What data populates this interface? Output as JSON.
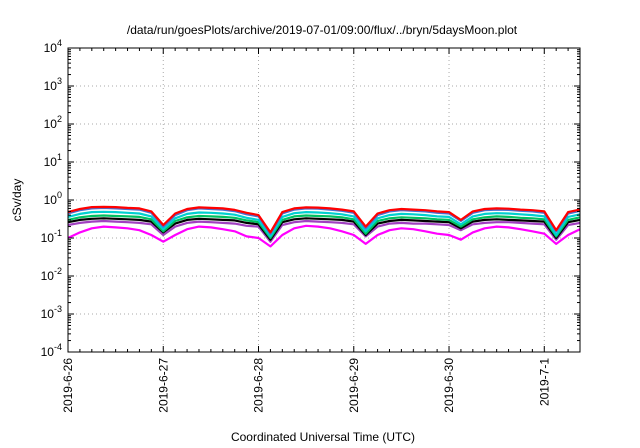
{
  "chart_data": {
    "type": "line",
    "title": "/data/run/goesPlots/archive/2019-07-01/09:00/flux/../bryn/5daysMoon.plot",
    "xlabel": "Coordinated Universal Time (UTC)",
    "ylabel": "cSv/day",
    "yscale": "log",
    "ylim": [
      0.0001,
      10000
    ],
    "ytick_labels": [
      {
        "base": "10",
        "exp": "-4",
        "value": 0.0001
      },
      {
        "base": "10",
        "exp": "-3",
        "value": 0.001
      },
      {
        "base": "10",
        "exp": "-2",
        "value": 0.01
      },
      {
        "base": "10",
        "exp": "-1",
        "value": 0.1
      },
      {
        "base": "10",
        "exp": "0",
        "value": 1
      },
      {
        "base": "10",
        "exp": "1",
        "value": 10
      },
      {
        "base": "10",
        "exp": "2",
        "value": 100
      },
      {
        "base": "10",
        "exp": "3",
        "value": 1000
      },
      {
        "base": "10",
        "exp": "4",
        "value": 10000
      }
    ],
    "xlim": [
      "2019-06-26 00:00",
      "2019-07-01 09:00"
    ],
    "xtick_labels": [
      "2019-6-26",
      "2019-6-27",
      "2019-6-28",
      "2019-6-29",
      "2019-6-30",
      "2019-7-1"
    ],
    "grid": true,
    "x": [
      "2019-06-26 00:00",
      "2019-06-26 03:00",
      "2019-06-26 06:00",
      "2019-06-26 09:00",
      "2019-06-26 12:00",
      "2019-06-26 15:00",
      "2019-06-26 18:00",
      "2019-06-26 21:00",
      "2019-06-27 00:00",
      "2019-06-27 03:00",
      "2019-06-27 06:00",
      "2019-06-27 09:00",
      "2019-06-27 12:00",
      "2019-06-27 15:00",
      "2019-06-27 18:00",
      "2019-06-27 21:00",
      "2019-06-28 00:00",
      "2019-06-28 03:00",
      "2019-06-28 06:00",
      "2019-06-28 09:00",
      "2019-06-28 12:00",
      "2019-06-28 15:00",
      "2019-06-28 18:00",
      "2019-06-28 21:00",
      "2019-06-29 00:00",
      "2019-06-29 03:00",
      "2019-06-29 06:00",
      "2019-06-29 09:00",
      "2019-06-29 12:00",
      "2019-06-29 15:00",
      "2019-06-29 18:00",
      "2019-06-29 21:00",
      "2019-06-30 00:00",
      "2019-06-30 03:00",
      "2019-06-30 06:00",
      "2019-06-30 09:00",
      "2019-06-30 12:00",
      "2019-06-30 15:00",
      "2019-06-30 18:00",
      "2019-06-30 21:00",
      "2019-07-01 00:00",
      "2019-07-01 03:00",
      "2019-07-01 06:00",
      "2019-07-01 09:00"
    ],
    "series": [
      {
        "color": "#ff0000",
        "values": [
          0.48,
          0.58,
          0.65,
          0.66,
          0.65,
          0.62,
          0.6,
          0.5,
          0.22,
          0.44,
          0.58,
          0.64,
          0.62,
          0.6,
          0.55,
          0.46,
          0.4,
          0.14,
          0.48,
          0.6,
          0.64,
          0.63,
          0.6,
          0.56,
          0.5,
          0.2,
          0.44,
          0.54,
          0.58,
          0.56,
          0.54,
          0.5,
          0.48,
          0.3,
          0.5,
          0.58,
          0.6,
          0.59,
          0.56,
          0.54,
          0.5,
          0.16,
          0.48,
          0.56
        ]
      },
      {
        "color": "#4a6fd0",
        "values": [
          0.44,
          0.54,
          0.6,
          0.62,
          0.6,
          0.58,
          0.56,
          0.46,
          0.2,
          0.4,
          0.54,
          0.6,
          0.58,
          0.56,
          0.51,
          0.42,
          0.37,
          0.13,
          0.44,
          0.56,
          0.6,
          0.59,
          0.56,
          0.52,
          0.46,
          0.18,
          0.4,
          0.5,
          0.54,
          0.52,
          0.5,
          0.46,
          0.44,
          0.28,
          0.46,
          0.54,
          0.56,
          0.55,
          0.52,
          0.5,
          0.46,
          0.15,
          0.44,
          0.52
        ]
      },
      {
        "color": "#00d0d0",
        "values": [
          0.36,
          0.43,
          0.48,
          0.49,
          0.48,
          0.46,
          0.44,
          0.37,
          0.17,
          0.33,
          0.43,
          0.47,
          0.46,
          0.44,
          0.41,
          0.34,
          0.3,
          0.11,
          0.36,
          0.45,
          0.48,
          0.47,
          0.45,
          0.42,
          0.37,
          0.15,
          0.33,
          0.4,
          0.43,
          0.42,
          0.4,
          0.37,
          0.36,
          0.23,
          0.37,
          0.43,
          0.45,
          0.44,
          0.42,
          0.4,
          0.37,
          0.12,
          0.36,
          0.42
        ]
      },
      {
        "color": "#00c060",
        "values": [
          0.3,
          0.35,
          0.38,
          0.39,
          0.38,
          0.37,
          0.36,
          0.31,
          0.15,
          0.28,
          0.35,
          0.38,
          0.37,
          0.36,
          0.34,
          0.29,
          0.26,
          0.1,
          0.3,
          0.37,
          0.39,
          0.38,
          0.37,
          0.35,
          0.31,
          0.13,
          0.28,
          0.33,
          0.35,
          0.34,
          0.33,
          0.31,
          0.3,
          0.2,
          0.31,
          0.35,
          0.37,
          0.36,
          0.34,
          0.33,
          0.31,
          0.11,
          0.3,
          0.35
        ]
      },
      {
        "color": "#000000",
        "values": [
          0.26,
          0.3,
          0.32,
          0.33,
          0.32,
          0.31,
          0.3,
          0.27,
          0.14,
          0.24,
          0.3,
          0.32,
          0.31,
          0.3,
          0.29,
          0.25,
          0.23,
          0.09,
          0.26,
          0.31,
          0.33,
          0.32,
          0.31,
          0.3,
          0.27,
          0.12,
          0.24,
          0.28,
          0.3,
          0.29,
          0.28,
          0.27,
          0.26,
          0.18,
          0.27,
          0.3,
          0.31,
          0.3,
          0.29,
          0.28,
          0.27,
          0.1,
          0.26,
          0.3
        ]
      },
      {
        "color": "#a040c0",
        "values": [
          0.22,
          0.25,
          0.27,
          0.28,
          0.27,
          0.26,
          0.25,
          0.23,
          0.12,
          0.2,
          0.25,
          0.27,
          0.26,
          0.25,
          0.24,
          0.21,
          0.2,
          0.08,
          0.22,
          0.26,
          0.28,
          0.27,
          0.26,
          0.25,
          0.23,
          0.11,
          0.2,
          0.24,
          0.25,
          0.24,
          0.24,
          0.23,
          0.22,
          0.16,
          0.23,
          0.25,
          0.26,
          0.26,
          0.25,
          0.24,
          0.23,
          0.09,
          0.22,
          0.25
        ]
      },
      {
        "color": "#ff00ff",
        "values": [
          0.1,
          0.14,
          0.18,
          0.2,
          0.19,
          0.18,
          0.16,
          0.12,
          0.08,
          0.12,
          0.17,
          0.2,
          0.19,
          0.17,
          0.15,
          0.11,
          0.1,
          0.06,
          0.12,
          0.18,
          0.21,
          0.2,
          0.18,
          0.15,
          0.12,
          0.07,
          0.12,
          0.16,
          0.18,
          0.17,
          0.15,
          0.13,
          0.12,
          0.09,
          0.14,
          0.18,
          0.2,
          0.19,
          0.17,
          0.15,
          0.13,
          0.07,
          0.12,
          0.17
        ]
      }
    ]
  }
}
